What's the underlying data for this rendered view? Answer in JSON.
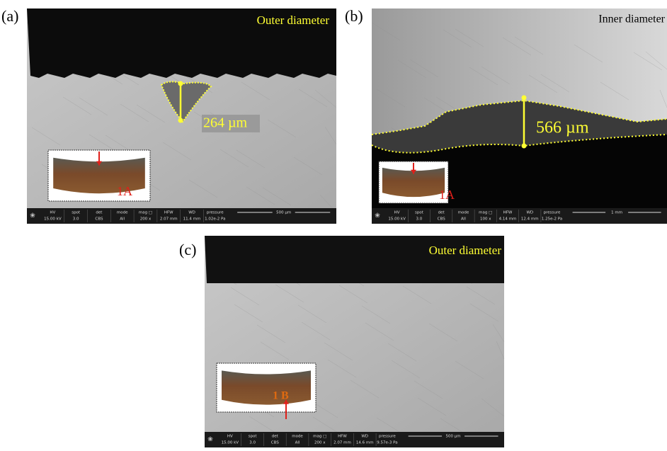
{
  "panels": [
    {
      "label": "(a)",
      "caption": "Outer diameter",
      "measurement": "264 µm",
      "inset_label": "1A",
      "info_bar": {
        "headers": [
          "HV",
          "spot",
          "det",
          "mode",
          "mag □",
          "HFW",
          "WD",
          "pressure"
        ],
        "values": [
          "15.00 kV",
          "3.0",
          "CBS",
          "All",
          "200 x",
          "2.07 mm",
          "11.4 mm",
          "1.02e-2 Pa"
        ],
        "scale": "500 µm"
      }
    },
    {
      "label": "(b)",
      "caption": "Inner diameter",
      "measurement": "566 µm",
      "inset_label": "1A",
      "info_bar": {
        "headers": [
          "HV",
          "spot",
          "det",
          "mode",
          "mag □",
          "HFW",
          "WD",
          "pressure"
        ],
        "values": [
          "15.00 kV",
          "3.0",
          "CBS",
          "All",
          "100 x",
          "4.14 mm",
          "12.4 mm",
          "1.25e-2 Pa"
        ],
        "scale": "1 mm"
      }
    },
    {
      "label": "(c)",
      "caption": "Outer diameter",
      "inset_label": "1 B",
      "info_bar": {
        "headers": [
          "HV",
          "spot",
          "det",
          "mode",
          "mag □",
          "HFW",
          "WD",
          "pressure"
        ],
        "values": [
          "15.00 kV",
          "3.0",
          "CBS",
          "All",
          "200 x",
          "2.07 mm",
          "14.6 mm",
          "9.57e-3 Pa"
        ],
        "scale": "500 µm"
      }
    }
  ]
}
